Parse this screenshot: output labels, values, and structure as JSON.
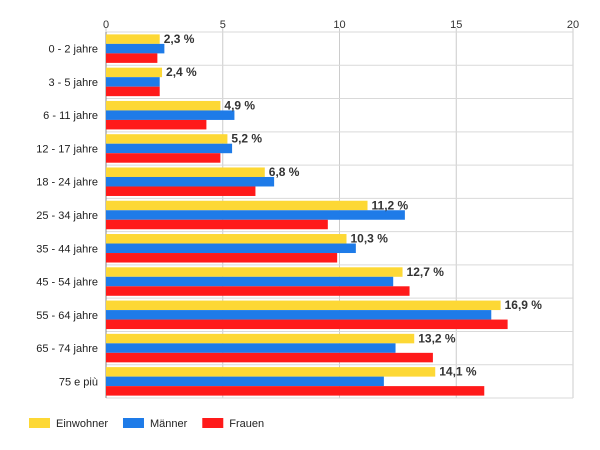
{
  "chart_data": {
    "type": "bar",
    "orientation": "horizontal",
    "title": "",
    "xlabel": "",
    "ylabel": "",
    "xlim": [
      0,
      20
    ],
    "ticks": [
      0,
      5,
      10,
      15,
      20
    ],
    "grid": true,
    "legend_position": "bottom-left",
    "categories": [
      "0 - 2 jahre",
      "3 - 5 jahre",
      "6 - 11 jahre",
      "12 - 17 jahre",
      "18 - 24 jahre",
      "25 - 34 jahre",
      "35 - 44 jahre",
      "45 - 54 jahre",
      "55 - 64 jahre",
      "65 - 74 jahre",
      "75 e più"
    ],
    "series": [
      {
        "name": "Einwohner",
        "color": "#FDD835",
        "values": [
          2.3,
          2.4,
          4.9,
          5.2,
          6.8,
          11.2,
          10.3,
          12.7,
          16.9,
          13.2,
          14.1
        ]
      },
      {
        "name": "Männer",
        "color": "#1E7BE8",
        "values": [
          2.5,
          2.3,
          5.5,
          5.4,
          7.2,
          12.8,
          10.7,
          12.3,
          16.5,
          12.4,
          11.9
        ]
      },
      {
        "name": "Frauen",
        "color": "#FF1A1A",
        "values": [
          2.2,
          2.3,
          4.3,
          4.9,
          6.4,
          9.5,
          9.9,
          13.0,
          17.2,
          14.0,
          16.2
        ]
      }
    ],
    "data_labels": [
      "2,3 %",
      "2,4 %",
      "4,9 %",
      "5,2 %",
      "6,8 %",
      "11,2 %",
      "10,3 %",
      "12,7 %",
      "16,9 %",
      "13,2 %",
      "14,1 %"
    ]
  }
}
